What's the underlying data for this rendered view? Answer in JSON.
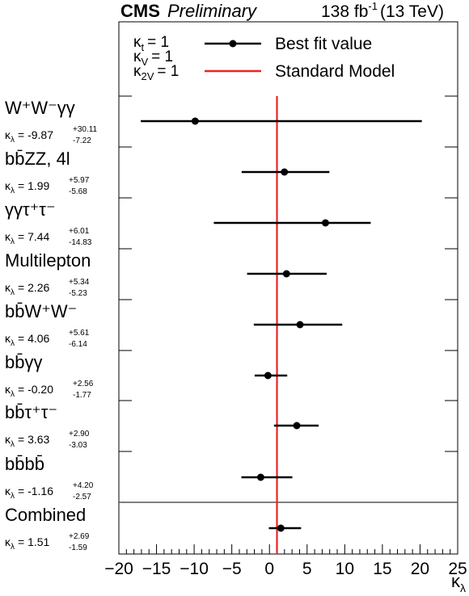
{
  "header": {
    "experiment": "CMS",
    "status": "Preliminary",
    "lumi": "138 fb",
    "lumi_exp": "-1",
    "energy": "(13 TeV)"
  },
  "fixed_couplings": [
    {
      "sym": "κ",
      "sub": "t",
      "val": "= 1"
    },
    {
      "sym": "κ",
      "sub": "V",
      "val": "= 1"
    },
    {
      "sym": "κ",
      "sub": "2V",
      "val": "= 1"
    }
  ],
  "legend": {
    "best_fit": "Best fit value",
    "sm": "Standard Model"
  },
  "colors": {
    "sm_line": "#ee2222",
    "points": "#000000",
    "frame": "#000000",
    "separator": "#555555"
  },
  "chart_data": {
    "type": "scatter",
    "orientation": "horizontal-error-bars",
    "xlabel": "κλ",
    "xlim": [
      -20,
      25
    ],
    "x_ticks": [
      -20,
      -15,
      -10,
      -5,
      0,
      5,
      10,
      15,
      20,
      25
    ],
    "sm_value": 1,
    "kappa_prefix": "κλ =",
    "channels": [
      {
        "name": "W⁺W⁻γγ",
        "central": -9.87,
        "up": 30.11,
        "down": 7.22,
        "val_text": "-9.87",
        "up_text": "+30.11",
        "down_text": "-7.22"
      },
      {
        "name": "bb̄ZZ, 4l",
        "central": 1.99,
        "up": 5.97,
        "down": 5.68,
        "val_text": "1.99",
        "up_text": "+5.97",
        "down_text": "-5.68"
      },
      {
        "name": "γγτ⁺τ⁻",
        "central": 7.44,
        "up": 6.01,
        "down": 14.83,
        "val_text": "7.44",
        "up_text": "+6.01",
        "down_text": "-14.83"
      },
      {
        "name": "Multilepton",
        "central": 2.26,
        "up": 5.34,
        "down": 5.23,
        "val_text": "2.26",
        "up_text": "+5.34",
        "down_text": "-5.23"
      },
      {
        "name": "bb̄W⁺W⁻",
        "central": 4.06,
        "up": 5.61,
        "down": 6.14,
        "val_text": "4.06",
        "up_text": "+5.61",
        "down_text": "-6.14"
      },
      {
        "name": "bb̄γγ",
        "central": -0.2,
        "up": 2.56,
        "down": 1.77,
        "val_text": "-0.20",
        "up_text": "+2.56",
        "down_text": "-1.77"
      },
      {
        "name": "bb̄τ⁺τ⁻",
        "central": 3.63,
        "up": 2.9,
        "down": 3.03,
        "val_text": "3.63",
        "up_text": "+2.90",
        "down_text": "-3.03"
      },
      {
        "name": "bb̄bb̄",
        "central": -1.16,
        "up": 4.2,
        "down": 2.57,
        "val_text": "-1.16",
        "up_text": "+4.20",
        "down_text": "-2.57"
      },
      {
        "name": "Combined",
        "central": 1.51,
        "up": 2.69,
        "down": 1.59,
        "val_text": "1.51",
        "up_text": "+2.69",
        "down_text": "-1.59"
      }
    ]
  }
}
